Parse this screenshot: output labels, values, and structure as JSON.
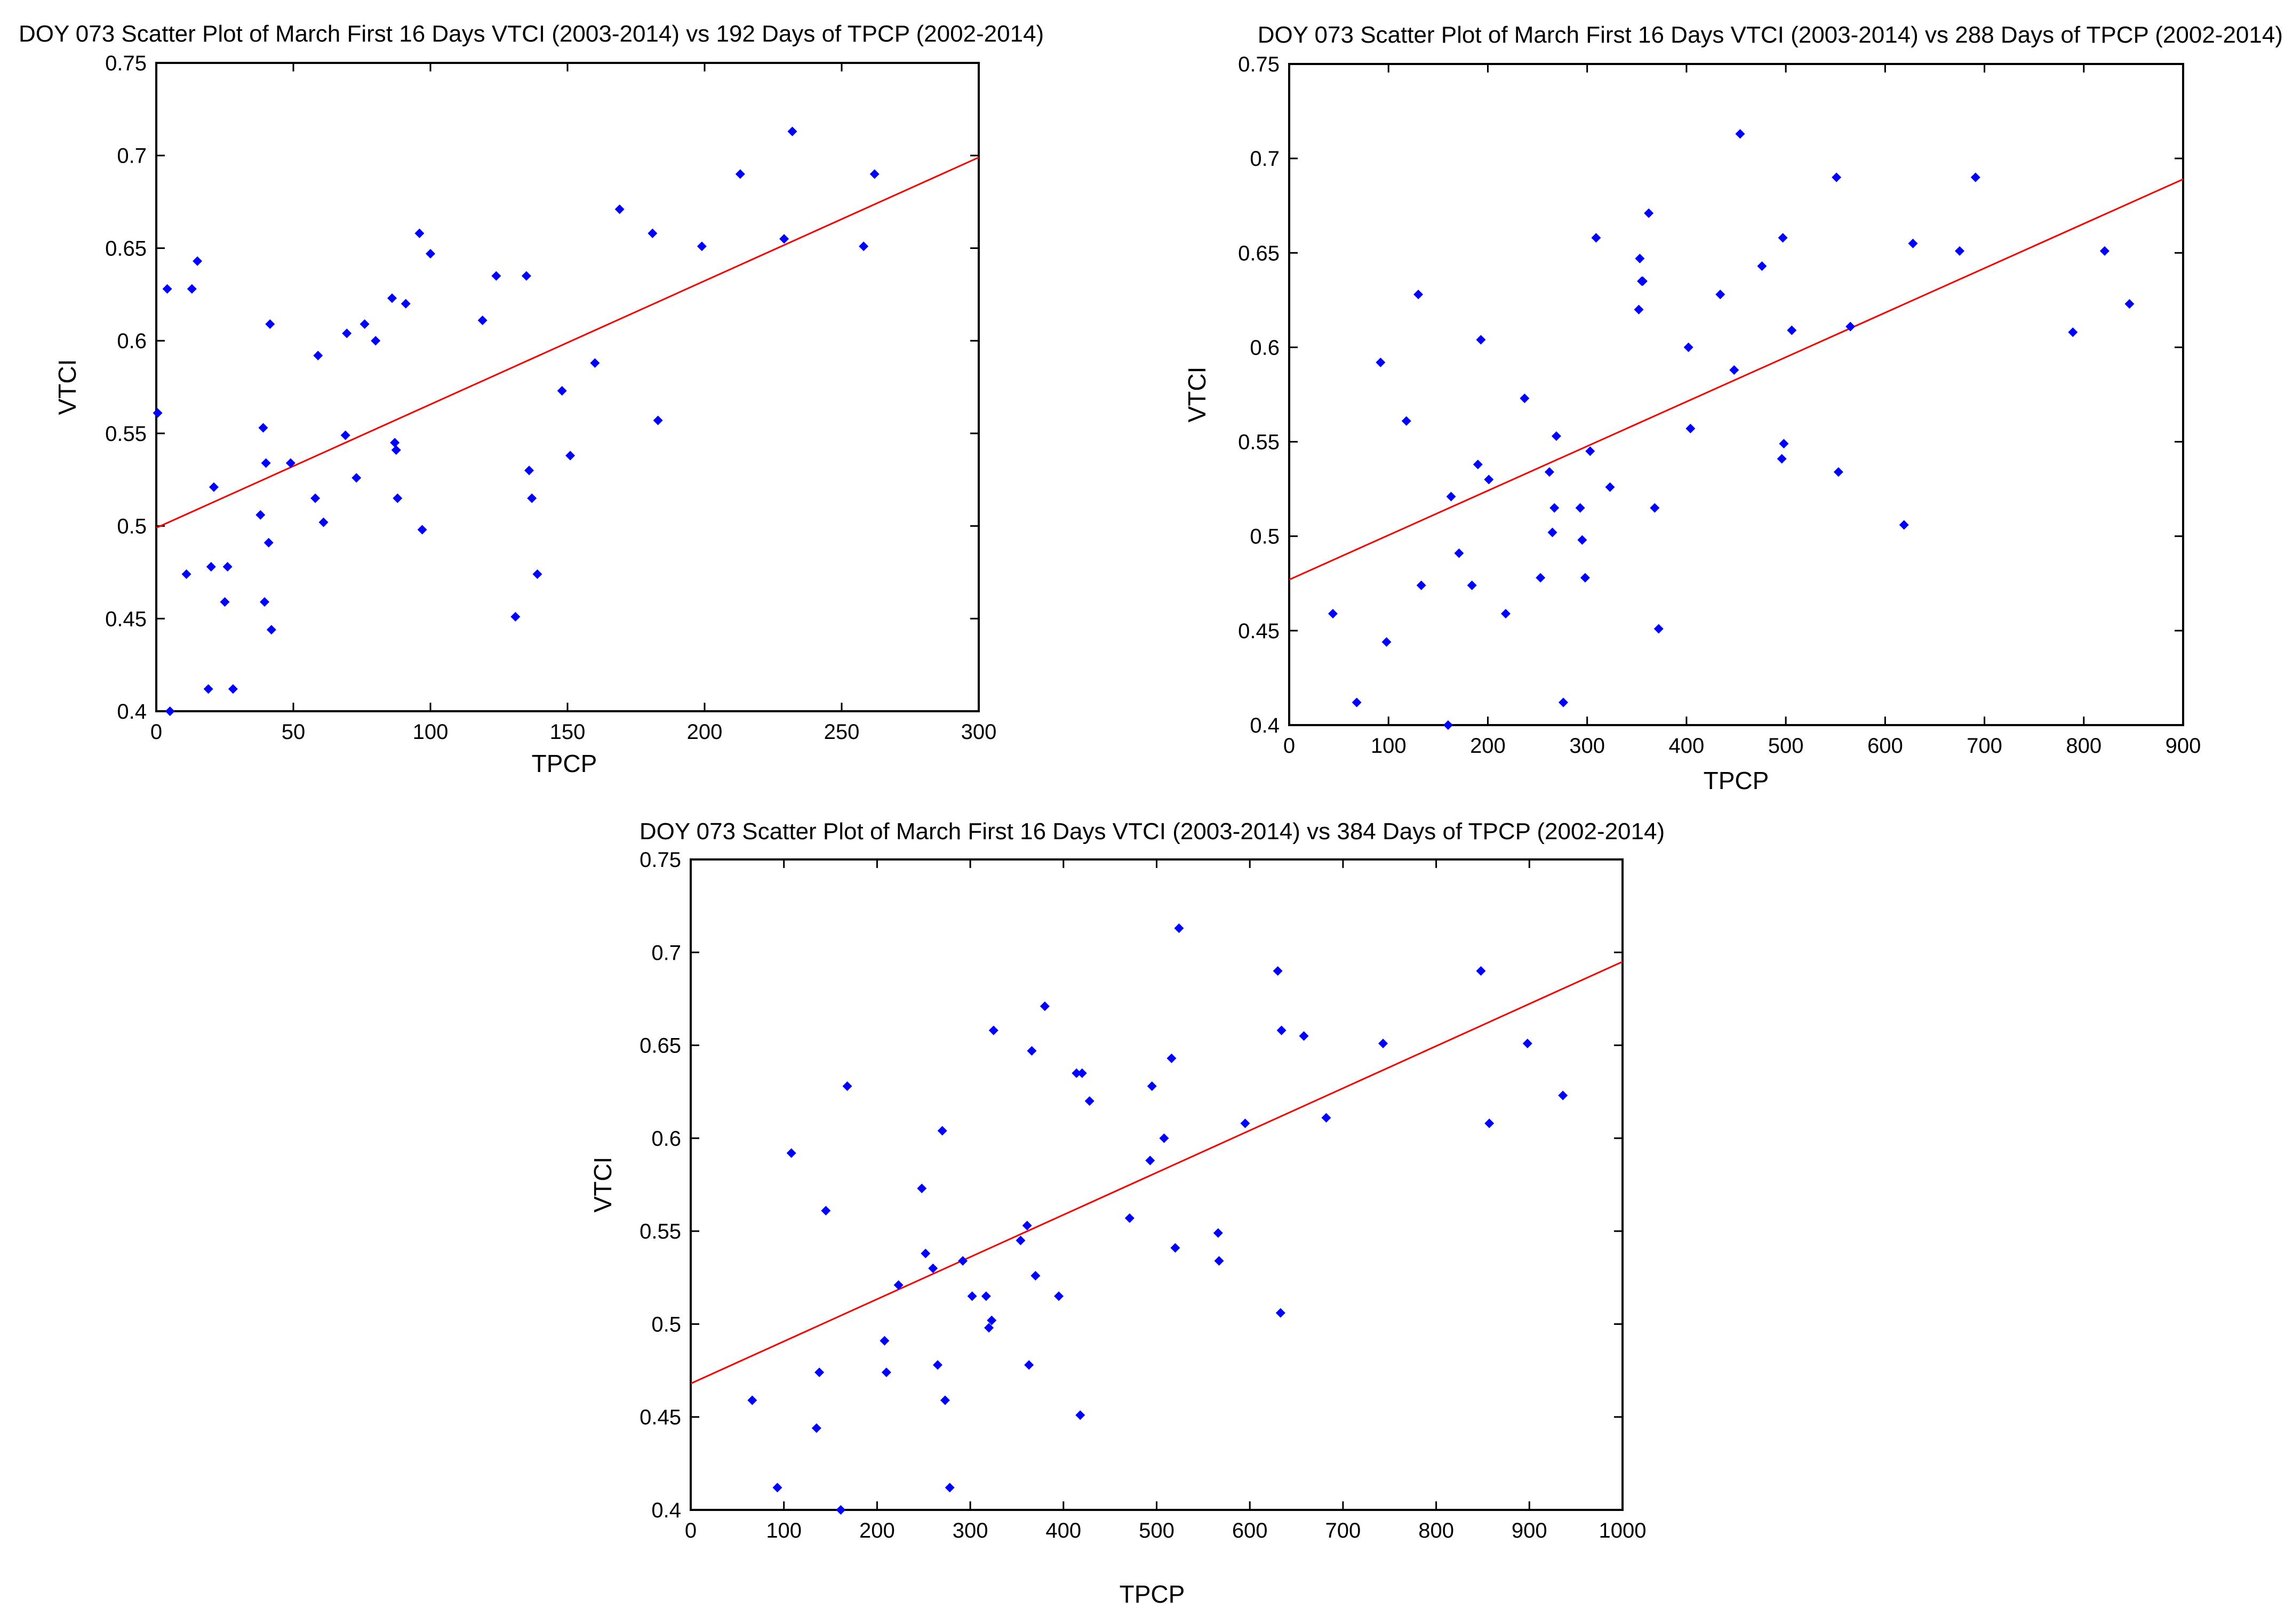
{
  "chart_data": [
    {
      "type": "scatter",
      "title": "DOY 073 Scatter Plot of  March First 16 Days VTCI (2003-2014) vs 192 Days of TPCP (2002-2014)",
      "xlabel": "TPCP",
      "ylabel": "VTCI",
      "xlim": [
        0,
        300
      ],
      "ylim": [
        0.4,
        0.75
      ],
      "xticks": [
        0,
        50,
        100,
        150,
        200,
        250,
        300
      ],
      "yticks": [
        0.4,
        0.45,
        0.5,
        0.55,
        0.6,
        0.65,
        0.7,
        0.75
      ],
      "xtick_labels": [
        "0",
        "50",
        "100",
        "150",
        "200",
        "250",
        "300"
      ],
      "ytick_labels": [
        "0.4",
        "0.45",
        "0.5",
        "0.55",
        "0.6",
        "0.65",
        "0.7",
        "0.75"
      ],
      "grid": false,
      "marker_color": "#0000ff",
      "fit_color": "#ff0000",
      "fit_line": {
        "x": [
          0,
          300
        ],
        "y": [
          0.499,
          0.699
        ]
      },
      "points": [
        {
          "x": 0.5,
          "y": 0.561
        },
        {
          "x": 4,
          "y": 0.628
        },
        {
          "x": 5,
          "y": 0.4
        },
        {
          "x": 11,
          "y": 0.474
        },
        {
          "x": 13,
          "y": 0.628
        },
        {
          "x": 15,
          "y": 0.643
        },
        {
          "x": 19,
          "y": 0.412
        },
        {
          "x": 20,
          "y": 0.478
        },
        {
          "x": 21,
          "y": 0.521
        },
        {
          "x": 25,
          "y": 0.459
        },
        {
          "x": 26,
          "y": 0.478
        },
        {
          "x": 28,
          "y": 0.412
        },
        {
          "x": 38,
          "y": 0.506
        },
        {
          "x": 39,
          "y": 0.553
        },
        {
          "x": 39.5,
          "y": 0.459
        },
        {
          "x": 40,
          "y": 0.534
        },
        {
          "x": 41,
          "y": 0.491
        },
        {
          "x": 41.5,
          "y": 0.609
        },
        {
          "x": 42,
          "y": 0.444
        },
        {
          "x": 49,
          "y": 0.534
        },
        {
          "x": 58,
          "y": 0.515
        },
        {
          "x": 59,
          "y": 0.592
        },
        {
          "x": 61,
          "y": 0.502
        },
        {
          "x": 69,
          "y": 0.549
        },
        {
          "x": 69.5,
          "y": 0.604
        },
        {
          "x": 73,
          "y": 0.526
        },
        {
          "x": 76,
          "y": 0.609
        },
        {
          "x": 80,
          "y": 0.6
        },
        {
          "x": 86,
          "y": 0.623
        },
        {
          "x": 87,
          "y": 0.545
        },
        {
          "x": 87.5,
          "y": 0.541
        },
        {
          "x": 88,
          "y": 0.515
        },
        {
          "x": 91,
          "y": 0.62
        },
        {
          "x": 96,
          "y": 0.658
        },
        {
          "x": 97,
          "y": 0.498
        },
        {
          "x": 100,
          "y": 0.647
        },
        {
          "x": 119,
          "y": 0.611
        },
        {
          "x": 124,
          "y": 0.635
        },
        {
          "x": 131,
          "y": 0.451
        },
        {
          "x": 135,
          "y": 0.635
        },
        {
          "x": 136,
          "y": 0.53
        },
        {
          "x": 137,
          "y": 0.515
        },
        {
          "x": 139,
          "y": 0.474
        },
        {
          "x": 148,
          "y": 0.573
        },
        {
          "x": 151,
          "y": 0.538
        },
        {
          "x": 160,
          "y": 0.588
        },
        {
          "x": 169,
          "y": 0.671
        },
        {
          "x": 181,
          "y": 0.658
        },
        {
          "x": 183,
          "y": 0.557
        },
        {
          "x": 199,
          "y": 0.651
        },
        {
          "x": 213,
          "y": 0.69
        },
        {
          "x": 229,
          "y": 0.655
        },
        {
          "x": 232,
          "y": 0.713
        },
        {
          "x": 258,
          "y": 0.651
        },
        {
          "x": 262,
          "y": 0.69
        }
      ]
    },
    {
      "type": "scatter",
      "title": "DOY 073 Scatter Plot of  March First 16 Days VTCI (2003-2014) vs 288 Days of TPCP  (2002-2014)",
      "xlabel": "TPCP",
      "ylabel": "VTCI",
      "xlim": [
        0,
        900
      ],
      "ylim": [
        0.4,
        0.75
      ],
      "xticks": [
        0,
        100,
        200,
        300,
        400,
        500,
        600,
        700,
        800,
        900
      ],
      "yticks": [
        0.4,
        0.45,
        0.5,
        0.55,
        0.6,
        0.65,
        0.7,
        0.75
      ],
      "xtick_labels": [
        "0",
        "100",
        "200",
        "300",
        "400",
        "500",
        "600",
        "700",
        "800",
        "900"
      ],
      "ytick_labels": [
        "0.4",
        "0.45",
        "0.5",
        "0.55",
        "0.6",
        "0.65",
        "0.7",
        "0.75"
      ],
      "grid": false,
      "marker_color": "#0000ff",
      "fit_color": "#ff0000",
      "fit_line": {
        "x": [
          0,
          900
        ],
        "y": [
          0.477,
          0.689
        ]
      },
      "points": [
        {
          "x": 44,
          "y": 0.459
        },
        {
          "x": 68,
          "y": 0.412
        },
        {
          "x": 92,
          "y": 0.592
        },
        {
          "x": 98,
          "y": 0.444
        },
        {
          "x": 118,
          "y": 0.561
        },
        {
          "x": 130,
          "y": 0.628
        },
        {
          "x": 133,
          "y": 0.474
        },
        {
          "x": 160,
          "y": 0.4
        },
        {
          "x": 163,
          "y": 0.521
        },
        {
          "x": 171,
          "y": 0.491
        },
        {
          "x": 184,
          "y": 0.474
        },
        {
          "x": 190,
          "y": 0.538
        },
        {
          "x": 193,
          "y": 0.604
        },
        {
          "x": 201,
          "y": 0.53
        },
        {
          "x": 218,
          "y": 0.459
        },
        {
          "x": 237,
          "y": 0.573
        },
        {
          "x": 253,
          "y": 0.478
        },
        {
          "x": 262,
          "y": 0.534
        },
        {
          "x": 265,
          "y": 0.502
        },
        {
          "x": 267,
          "y": 0.515
        },
        {
          "x": 269,
          "y": 0.553
        },
        {
          "x": 276,
          "y": 0.412
        },
        {
          "x": 293,
          "y": 0.515
        },
        {
          "x": 295,
          "y": 0.498
        },
        {
          "x": 298,
          "y": 0.478
        },
        {
          "x": 303,
          "y": 0.545
        },
        {
          "x": 309,
          "y": 0.658
        },
        {
          "x": 323,
          "y": 0.526
        },
        {
          "x": 352,
          "y": 0.62
        },
        {
          "x": 353,
          "y": 0.647
        },
        {
          "x": 355,
          "y": 0.635
        },
        {
          "x": 356,
          "y": 0.635
        },
        {
          "x": 362,
          "y": 0.671
        },
        {
          "x": 368,
          "y": 0.515
        },
        {
          "x": 372,
          "y": 0.451
        },
        {
          "x": 402,
          "y": 0.6
        },
        {
          "x": 404,
          "y": 0.557
        },
        {
          "x": 434,
          "y": 0.628
        },
        {
          "x": 448,
          "y": 0.588
        },
        {
          "x": 454,
          "y": 0.713
        },
        {
          "x": 476,
          "y": 0.643
        },
        {
          "x": 496,
          "y": 0.541
        },
        {
          "x": 497,
          "y": 0.658
        },
        {
          "x": 498,
          "y": 0.549
        },
        {
          "x": 506,
          "y": 0.609
        },
        {
          "x": 551,
          "y": 0.69
        },
        {
          "x": 553,
          "y": 0.534
        },
        {
          "x": 565,
          "y": 0.611
        },
        {
          "x": 619,
          "y": 0.506
        },
        {
          "x": 628,
          "y": 0.655
        },
        {
          "x": 675,
          "y": 0.651
        },
        {
          "x": 691,
          "y": 0.69
        },
        {
          "x": 789,
          "y": 0.608
        },
        {
          "x": 821,
          "y": 0.651
        },
        {
          "x": 846,
          "y": 0.623
        }
      ]
    },
    {
      "type": "scatter",
      "title": "DOY 073 Scatter Plot of  March First 16 Days VTCI (2003-2014) vs 384 Days of TPCP  (2002-2014)",
      "xlabel": "TPCP",
      "ylabel": "VTCI",
      "xlim": [
        0,
        1000
      ],
      "ylim": [
        0.4,
        0.75
      ],
      "xticks": [
        0,
        100,
        200,
        300,
        400,
        500,
        600,
        700,
        800,
        900,
        1000
      ],
      "yticks": [
        0.4,
        0.45,
        0.5,
        0.55,
        0.6,
        0.65,
        0.7,
        0.75
      ],
      "xtick_labels": [
        "0",
        "100",
        "200",
        "300",
        "400",
        "500",
        "600",
        "700",
        "800",
        "900",
        "1000"
      ],
      "ytick_labels": [
        "0.4",
        "0.45",
        "0.5",
        "0.55",
        "0.6",
        "0.65",
        "0.7",
        "0.75"
      ],
      "grid": false,
      "marker_color": "#0000ff",
      "fit_color": "#ff0000",
      "fit_line": {
        "x": [
          0,
          1000
        ],
        "y": [
          0.468,
          0.695
        ]
      },
      "points": [
        {
          "x": 66,
          "y": 0.459
        },
        {
          "x": 93,
          "y": 0.412
        },
        {
          "x": 108,
          "y": 0.592
        },
        {
          "x": 135,
          "y": 0.444
        },
        {
          "x": 138,
          "y": 0.474
        },
        {
          "x": 145,
          "y": 0.561
        },
        {
          "x": 161,
          "y": 0.4
        },
        {
          "x": 168,
          "y": 0.628
        },
        {
          "x": 208,
          "y": 0.491
        },
        {
          "x": 210,
          "y": 0.474
        },
        {
          "x": 223,
          "y": 0.521
        },
        {
          "x": 248,
          "y": 0.573
        },
        {
          "x": 252,
          "y": 0.538
        },
        {
          "x": 260,
          "y": 0.53
        },
        {
          "x": 265,
          "y": 0.478
        },
        {
          "x": 270,
          "y": 0.604
        },
        {
          "x": 273,
          "y": 0.459
        },
        {
          "x": 278,
          "y": 0.412
        },
        {
          "x": 292,
          "y": 0.534
        },
        {
          "x": 302,
          "y": 0.515
        },
        {
          "x": 317,
          "y": 0.515
        },
        {
          "x": 320,
          "y": 0.498
        },
        {
          "x": 323,
          "y": 0.502
        },
        {
          "x": 325,
          "y": 0.658
        },
        {
          "x": 354,
          "y": 0.545
        },
        {
          "x": 361,
          "y": 0.553
        },
        {
          "x": 363,
          "y": 0.478
        },
        {
          "x": 366,
          "y": 0.647
        },
        {
          "x": 370,
          "y": 0.526
        },
        {
          "x": 380,
          "y": 0.671
        },
        {
          "x": 395,
          "y": 0.515
        },
        {
          "x": 414,
          "y": 0.635
        },
        {
          "x": 418,
          "y": 0.451
        },
        {
          "x": 420,
          "y": 0.635
        },
        {
          "x": 428,
          "y": 0.62
        },
        {
          "x": 471,
          "y": 0.557
        },
        {
          "x": 493,
          "y": 0.588
        },
        {
          "x": 495,
          "y": 0.628
        },
        {
          "x": 508,
          "y": 0.6
        },
        {
          "x": 516,
          "y": 0.643
        },
        {
          "x": 520,
          "y": 0.541
        },
        {
          "x": 524,
          "y": 0.713
        },
        {
          "x": 566,
          "y": 0.549
        },
        {
          "x": 567,
          "y": 0.534
        },
        {
          "x": 595,
          "y": 0.608
        },
        {
          "x": 630,
          "y": 0.69
        },
        {
          "x": 633,
          "y": 0.506
        },
        {
          "x": 634,
          "y": 0.658
        },
        {
          "x": 658,
          "y": 0.655
        },
        {
          "x": 682,
          "y": 0.611
        },
        {
          "x": 743,
          "y": 0.651
        },
        {
          "x": 848,
          "y": 0.69
        },
        {
          "x": 857,
          "y": 0.608
        },
        {
          "x": 898,
          "y": 0.651
        },
        {
          "x": 936,
          "y": 0.623
        }
      ]
    }
  ]
}
